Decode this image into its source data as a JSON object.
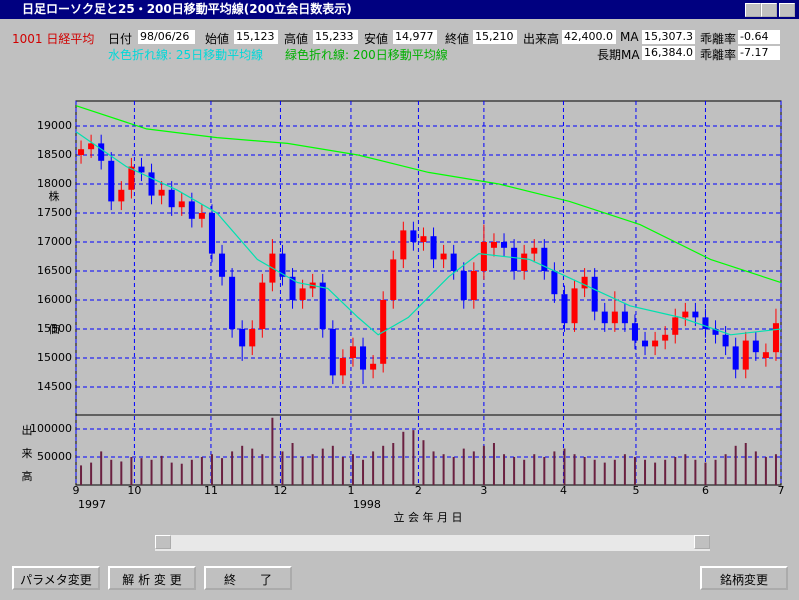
{
  "window": {
    "title": "日足ローソク足と25・200日移動平均線(200立会日数表示)"
  },
  "header": {
    "code_name": "1001 日経平均",
    "date_label": "日付",
    "date": "98/06/26",
    "open_label": "始値",
    "open": "15,123",
    "high_label": "高値",
    "high": "15,233",
    "low_label": "安値",
    "low": "14,977",
    "close_label": "終値",
    "close": "15,210",
    "volume_label": "出来高",
    "volume": "42,400.0",
    "ma_label": "MA",
    "ma": "15,307.3",
    "dev_label": "乖離率",
    "dev": "-0.64",
    "legend_short": "水色折れ線: 25日移動平均線",
    "legend_long": "緑色折れ線: 200日移動平均線",
    "long_ma_label": "長期MA",
    "long_ma": "16,384.0",
    "long_dev_label": "乖離率",
    "long_dev": "-7.17"
  },
  "chart_data": {
    "type": "candlestick",
    "x_label": "立 会 年 月 日",
    "y_label": [
      "株",
      "価"
    ],
    "volume_axis_label": [
      "出",
      "来",
      "高"
    ],
    "xlim": [
      0,
      70
    ],
    "xticks": [
      {
        "value": 0,
        "label": "9"
      },
      {
        "value": 5.8,
        "label": "10"
      },
      {
        "value": 13.4,
        "label": "11"
      },
      {
        "value": 20.3,
        "label": "12"
      },
      {
        "value": 27.3,
        "label": "1"
      },
      {
        "value": 34,
        "label": "2"
      },
      {
        "value": 40.5,
        "label": "3"
      },
      {
        "value": 48.4,
        "label": "4"
      },
      {
        "value": 55.6,
        "label": "5"
      },
      {
        "value": 62.5,
        "label": "6"
      },
      {
        "value": 70,
        "label": "7"
      }
    ],
    "year_labels": [
      {
        "value": 0,
        "label": "1997"
      },
      {
        "value": 27.3,
        "label": "1998"
      }
    ],
    "ylim": [
      14017,
      19431
    ],
    "yticks": [
      14500,
      15000,
      15500,
      16000,
      16500,
      17000,
      17500,
      18000,
      18500,
      19000
    ],
    "volume_ylim": [
      0,
      125000
    ],
    "volume_yticks": [
      50000,
      100000
    ],
    "grid": true,
    "up_color": "#ff0000",
    "down_color": "#0000ff",
    "volume_color": "#6a2040",
    "open": [
      18500,
      18600,
      18700,
      18400,
      17700,
      17900,
      18300,
      18200,
      17800,
      17900,
      17600,
      17700,
      17400,
      17500,
      16800,
      16400,
      15500,
      15200,
      15500,
      16300,
      16800,
      16400,
      16000,
      16200,
      16300,
      15500,
      14700,
      15000,
      15200,
      14800,
      14900,
      16000,
      16700,
      17200,
      17000,
      17100,
      16700,
      16800,
      16500,
      16000,
      16500,
      16900,
      17000,
      16900,
      16500,
      16800,
      16900,
      16500,
      16100,
      15600,
      16200,
      16400,
      15800,
      15600,
      15800,
      15600,
      15300,
      15200,
      15300,
      15400,
      15700,
      15800,
      15700,
      15500,
      15400,
      15200,
      14800,
      15300,
      15000,
      15100
    ],
    "high": [
      18750,
      18850,
      18850,
      18550,
      18050,
      18450,
      18450,
      18350,
      18050,
      18050,
      17850,
      17850,
      17650,
      17650,
      16950,
      16550,
      15650,
      15650,
      16450,
      17050,
      16950,
      16550,
      16350,
      16450,
      16450,
      15650,
      15150,
      15350,
      15350,
      15050,
      16150,
      16850,
      17350,
      17350,
      17250,
      17250,
      16950,
      16950,
      16650,
      16650,
      17300,
      17150,
      17150,
      17050,
      16950,
      17050,
      17050,
      16650,
      16250,
      16350,
      16550,
      16550,
      15950,
      16150,
      15950,
      15750,
      15450,
      15450,
      15550,
      15850,
      15950,
      15950,
      15850,
      15650,
      15550,
      15350,
      15450,
      15450,
      15250,
      15850
    ],
    "low": [
      18350,
      18450,
      18250,
      17550,
      17550,
      17750,
      18050,
      17650,
      17650,
      17450,
      17450,
      17250,
      17250,
      16650,
      16250,
      15350,
      14950,
      15050,
      15350,
      16150,
      16250,
      15850,
      15850,
      16050,
      15350,
      14550,
      14550,
      14850,
      14550,
      14650,
      14750,
      15850,
      16550,
      16850,
      16850,
      16550,
      16550,
      16350,
      15850,
      15850,
      16350,
      16750,
      16750,
      16350,
      16350,
      16650,
      16350,
      15950,
      15450,
      15450,
      16050,
      15650,
      15450,
      15450,
      15450,
      15150,
      15050,
      15050,
      15150,
      15250,
      15550,
      15550,
      15350,
      15250,
      15050,
      14650,
      14650,
      14950,
      14850,
      14950
    ],
    "close": [
      18600,
      18700,
      18400,
      17700,
      17900,
      18300,
      18200,
      17800,
      17900,
      17600,
      17700,
      17400,
      17500,
      16800,
      16400,
      15500,
      15200,
      15500,
      16300,
      16800,
      16400,
      16000,
      16200,
      16300,
      15500,
      14700,
      15000,
      15200,
      14800,
      14900,
      16000,
      16700,
      17200,
      17000,
      17100,
      16700,
      16800,
      16500,
      16000,
      16500,
      17000,
      17000,
      16900,
      16500,
      16800,
      16900,
      16500,
      16100,
      15600,
      16200,
      16400,
      15800,
      15600,
      15800,
      15600,
      15300,
      15200,
      15300,
      15400,
      15700,
      15800,
      15700,
      15500,
      15400,
      15200,
      14800,
      15300,
      15100,
      15100,
      15600
    ],
    "volume": [
      35000,
      40000,
      60000,
      45000,
      42000,
      50000,
      48000,
      45000,
      52000,
      40000,
      38000,
      45000,
      50000,
      55000,
      48000,
      60000,
      70000,
      65000,
      55000,
      120000,
      60000,
      75000,
      50000,
      55000,
      65000,
      70000,
      50000,
      55000,
      45000,
      60000,
      70000,
      75000,
      95000,
      98000,
      80000,
      60000,
      55000,
      50000,
      65000,
      60000,
      70000,
      75000,
      55000,
      50000,
      45000,
      55000,
      50000,
      60000,
      65000,
      55000,
      50000,
      45000,
      40000,
      45000,
      55000,
      50000,
      45000,
      40000,
      45000,
      50000,
      55000,
      45000,
      40000,
      45000,
      55000,
      70000,
      75000,
      60000,
      50000,
      55000
    ],
    "series": [
      {
        "color": "#00e0b0",
        "x": [
          0,
          5,
          10,
          14,
          18,
          22,
          25,
          28,
          30,
          33,
          37,
          40,
          45,
          50,
          55,
          60,
          65,
          70
        ],
        "values": [
          18900,
          18300,
          17900,
          17500,
          16700,
          16300,
          16200,
          15700,
          15400,
          15700,
          16400,
          16800,
          16700,
          16300,
          15900,
          15700,
          15400,
          15500
        ]
      },
      {
        "color": "#00ff00",
        "x": [
          0,
          7,
          14,
          21,
          28,
          35,
          42,
          49,
          56,
          63,
          70
        ],
        "values": [
          19350,
          18950,
          18800,
          18700,
          18500,
          18200,
          18000,
          17700,
          17300,
          16700,
          16300
        ]
      }
    ]
  },
  "buttons": [
    "パラメタ変更",
    "解 析 変 更",
    "終　　了",
    "銘柄変更"
  ]
}
